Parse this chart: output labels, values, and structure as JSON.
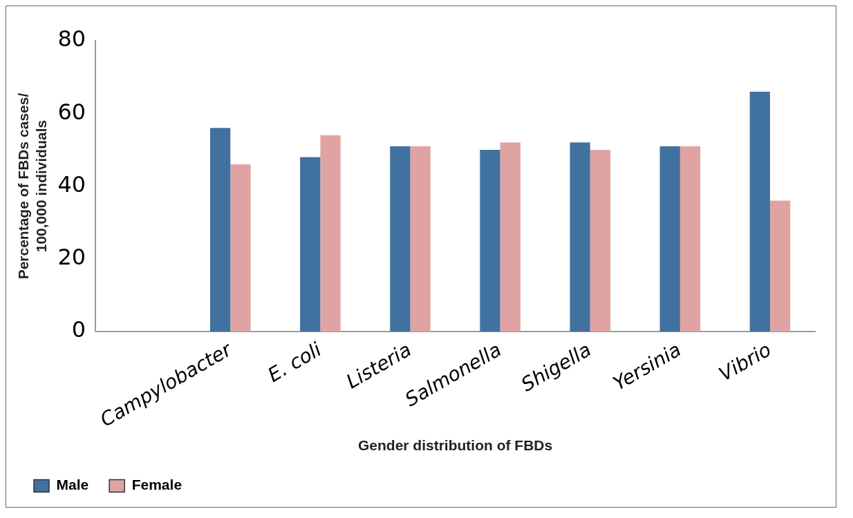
{
  "chart_data": {
    "type": "bar",
    "xlabel": "Gender distribution of FBDs",
    "ylabel": "Percentage of FBDs cases/ 100,000 individuals",
    "categories": [
      null,
      "Campylobacter",
      "E. coli",
      "Listeria",
      "Salmonella",
      "Shigella",
      "Yersinia",
      "Vibrio"
    ],
    "series": [
      {
        "name": "Male",
        "color": "#41719f",
        "values": [
          0,
          56,
          48,
          51,
          50,
          52,
          51,
          66
        ]
      },
      {
        "name": "Female",
        "color": "#e0a3a3",
        "values": [
          0,
          46,
          54,
          51,
          52,
          50,
          51,
          36
        ]
      }
    ],
    "ylim": [
      0,
      80
    ],
    "yticks": [
      0,
      20,
      40,
      60,
      80
    ],
    "grid": false,
    "legend": "bottom left"
  }
}
